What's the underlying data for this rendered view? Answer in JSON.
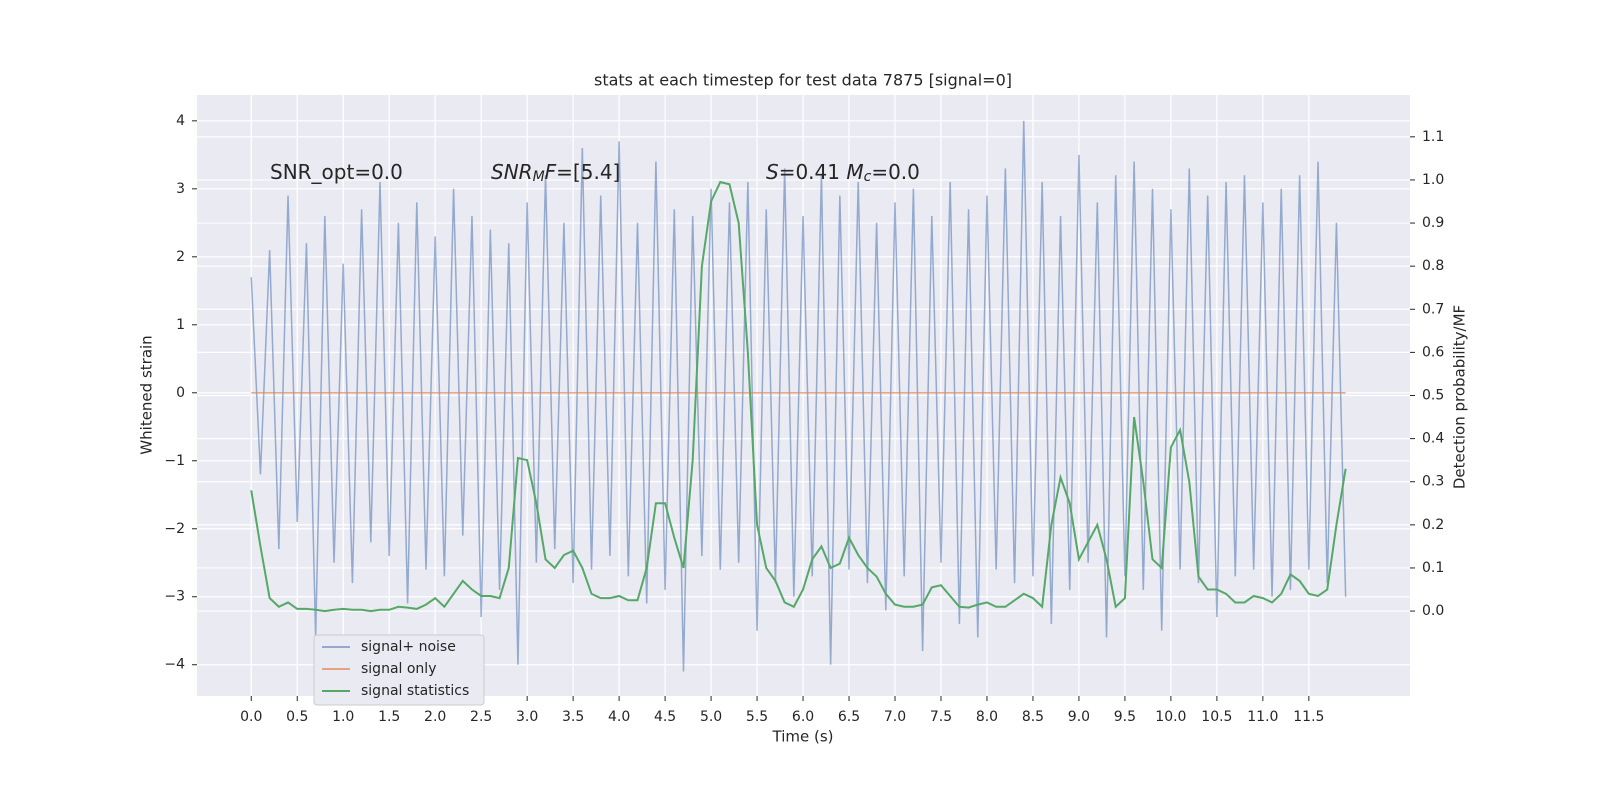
{
  "chart_data": {
    "type": "line",
    "title": "stats at each timestep for test data 7875 [signal=0]",
    "xlabel": "Time (s)",
    "ylabel": "Whitened strain",
    "y2label": "Detection probability/MF",
    "annotations": [
      [
        {
          "text": "SNR_opt=0.0"
        }
      ],
      [
        {
          "text": "SNR",
          "italic": true
        },
        {
          "text": "M",
          "italic": true,
          "sub": true
        },
        {
          "text": "F",
          "italic": true
        },
        {
          "text": "=[5.4]"
        }
      ],
      [
        {
          "text": "S",
          "italic": true
        },
        {
          "text": "=0.41   "
        },
        {
          "text": "M",
          "italic": true
        },
        {
          "text": "c",
          "italic": true,
          "sub": true
        },
        {
          "text": "=0.0"
        }
      ]
    ],
    "x": [
      0,
      0.1,
      0.2,
      0.3,
      0.4,
      0.5,
      0.6,
      0.7,
      0.8,
      0.9,
      1,
      1.1,
      1.2,
      1.3,
      1.4,
      1.5,
      1.6,
      1.7,
      1.8,
      1.9,
      2,
      2.1,
      2.2,
      2.3,
      2.4,
      2.5,
      2.6,
      2.7,
      2.8,
      2.9,
      3,
      3.1,
      3.2,
      3.3,
      3.4,
      3.5,
      3.6,
      3.7,
      3.8,
      3.9,
      4,
      4.1,
      4.2,
      4.3,
      4.4,
      4.5,
      4.6,
      4.7,
      4.8,
      4.9,
      5,
      5.1,
      5.2,
      5.3,
      5.4,
      5.5,
      5.6,
      5.7,
      5.8,
      5.9,
      6,
      6.1,
      6.2,
      6.3,
      6.4,
      6.5,
      6.6,
      6.7,
      6.8,
      6.9,
      7,
      7.1,
      7.2,
      7.3,
      7.4,
      7.5,
      7.6,
      7.7,
      7.8,
      7.9,
      8,
      8.1,
      8.2,
      8.3,
      8.4,
      8.5,
      8.6,
      8.7,
      8.8,
      8.9,
      9,
      9.1,
      9.2,
      9.3,
      9.4,
      9.5,
      9.6,
      9.7,
      9.8,
      9.9,
      10,
      10.1,
      10.2,
      10.3,
      10.4,
      10.5,
      10.6,
      10.7,
      10.8,
      10.9,
      11,
      11.1,
      11.2,
      11.3,
      11.4,
      11.5,
      11.6,
      11.7,
      11.8,
      11.9
    ],
    "series": [
      {
        "name": "signal+ noise",
        "color": "#4c72b0",
        "opacity": 0.55,
        "values": [
          1.7,
          -1.2,
          2.1,
          -2.3,
          2.9,
          -1.9,
          2.2,
          -3.6,
          2.6,
          -2.5,
          1.9,
          -2.8,
          2.7,
          -2.2,
          3.1,
          -2.4,
          2.5,
          -3.1,
          2.8,
          -2.6,
          2.3,
          -2.7,
          3.0,
          -2.1,
          2.6,
          -3.3,
          2.4,
          -2.9,
          2.2,
          -4.0,
          2.8,
          -2.5,
          3.2,
          -2.3,
          2.5,
          -2.8,
          3.6,
          -2.6,
          2.9,
          -2.4,
          3.7,
          -2.7,
          2.5,
          -3.1,
          3.4,
          -2.9,
          2.7,
          -4.1,
          2.6,
          -2.4,
          3.0,
          -2.6,
          2.8,
          -2.5,
          3.1,
          -3.5,
          2.7,
          -2.8,
          3.3,
          -3.0,
          2.6,
          -2.7,
          3.2,
          -4.0,
          2.9,
          -2.6,
          3.1,
          -2.8,
          2.5,
          -3.2,
          2.8,
          -2.7,
          3.0,
          -3.8,
          2.6,
          -2.5,
          3.1,
          -3.4,
          2.7,
          -3.6,
          2.9,
          -2.6,
          3.3,
          -2.8,
          4.0,
          -2.7,
          3.1,
          -3.4,
          2.6,
          -2.9,
          3.5,
          -2.5,
          2.8,
          -3.6,
          3.2,
          -2.7,
          3.4,
          -2.9,
          3.0,
          -3.5,
          2.7,
          -2.6,
          3.3,
          -2.8,
          2.9,
          -3.3,
          3.1,
          -2.7,
          3.2,
          -2.6,
          2.8,
          -3.0,
          3.0,
          -2.9,
          3.2,
          -2.6,
          3.4,
          -2.8,
          2.5,
          -3.0
        ]
      },
      {
        "name": "signal only",
        "color": "#dd8452",
        "opacity": 0.7,
        "values": [
          0,
          0,
          0,
          0,
          0,
          0,
          0,
          0,
          0,
          0,
          0,
          0,
          0,
          0,
          0,
          0,
          0,
          0,
          0,
          0,
          0,
          0,
          0,
          0,
          0,
          0,
          0,
          0,
          0,
          0,
          0,
          0,
          0,
          0,
          0,
          0,
          0,
          0,
          0,
          0,
          0,
          0,
          0,
          0,
          0,
          0,
          0,
          0,
          0,
          0,
          0,
          0,
          0,
          0,
          0,
          0,
          0,
          0,
          0,
          0,
          0,
          0,
          0,
          0,
          0,
          0,
          0,
          0,
          0,
          0,
          0,
          0,
          0,
          0,
          0,
          0,
          0,
          0,
          0,
          0,
          0,
          0,
          0,
          0,
          0,
          0,
          0,
          0,
          0,
          0,
          0,
          0,
          0,
          0,
          0,
          0,
          0,
          0,
          0,
          0,
          0,
          0,
          0,
          0,
          0,
          0,
          0,
          0,
          0,
          0,
          0,
          0,
          0,
          0,
          0,
          0,
          0,
          0,
          0,
          0
        ]
      },
      {
        "name": "signal statistics",
        "color": "#55a868",
        "opacity": 1,
        "axis": "y2",
        "values": [
          0.28,
          0.15,
          0.03,
          0.01,
          0.02,
          0.005,
          0.005,
          0.003,
          0.0,
          0.003,
          0.005,
          0.003,
          0.003,
          0.0,
          0.003,
          0.003,
          0.01,
          0.008,
          0.005,
          0.015,
          0.03,
          0.01,
          0.04,
          0.07,
          0.05,
          0.035,
          0.035,
          0.03,
          0.1,
          0.355,
          0.35,
          0.25,
          0.12,
          0.1,
          0.13,
          0.14,
          0.1,
          0.04,
          0.03,
          0.03,
          0.035,
          0.025,
          0.025,
          0.1,
          0.25,
          0.25,
          0.17,
          0.1,
          0.35,
          0.8,
          0.95,
          0.995,
          0.99,
          0.9,
          0.6,
          0.2,
          0.1,
          0.07,
          0.02,
          0.01,
          0.05,
          0.12,
          0.15,
          0.1,
          0.11,
          0.17,
          0.13,
          0.1,
          0.08,
          0.04,
          0.015,
          0.01,
          0.01,
          0.015,
          0.055,
          0.06,
          0.035,
          0.01,
          0.008,
          0.015,
          0.02,
          0.01,
          0.01,
          0.025,
          0.04,
          0.03,
          0.01,
          0.2,
          0.31,
          0.25,
          0.12,
          0.16,
          0.2,
          0.12,
          0.01,
          0.03,
          0.45,
          0.3,
          0.12,
          0.1,
          0.38,
          0.42,
          0.3,
          0.08,
          0.05,
          0.05,
          0.04,
          0.02,
          0.02,
          0.035,
          0.03,
          0.02,
          0.04,
          0.085,
          0.07,
          0.04,
          0.035,
          0.05,
          0.2,
          0.33
        ]
      }
    ],
    "xlim": [
      -0.59,
      12.6
    ],
    "ylim": [
      -4.46,
      4.38
    ],
    "y2lim": [
      -0.197,
      1.197
    ],
    "xticks": [
      {
        "value": 0,
        "label": "0.0"
      },
      0.5,
      {
        "value": 1,
        "label": "1.0"
      },
      1.5,
      {
        "value": 2,
        "label": "2.0"
      },
      2.5,
      {
        "value": 3,
        "label": "3.0"
      },
      3.5,
      {
        "value": 4,
        "label": "4.0"
      },
      4.5,
      {
        "value": 5,
        "label": "5.0"
      },
      5.5,
      {
        "value": 6,
        "label": "6.0"
      },
      6.5,
      {
        "value": 7,
        "label": "7.0"
      },
      7.5,
      {
        "value": 8,
        "label": "8.0"
      },
      8.5,
      {
        "value": 9,
        "label": "9.0"
      },
      9.5,
      {
        "value": 10,
        "label": "10.0"
      },
      10.5,
      {
        "value": 11,
        "label": "11.0"
      },
      11.5
    ],
    "yticks": [
      {
        "value": -4,
        "label": "−4"
      },
      {
        "value": -3,
        "label": "−3"
      },
      {
        "value": -2,
        "label": "−2"
      },
      {
        "value": -1,
        "label": "−1"
      },
      0,
      1,
      2,
      3,
      4
    ],
    "y2ticks": [
      {
        "value": 0,
        "label": "0.0"
      },
      0.1,
      0.2,
      0.3,
      0.4,
      0.5,
      0.6,
      0.7,
      0.8,
      0.9,
      {
        "value": 1,
        "label": "1.0"
      },
      1.1
    ],
    "grid": true,
    "legend": "lower left"
  }
}
